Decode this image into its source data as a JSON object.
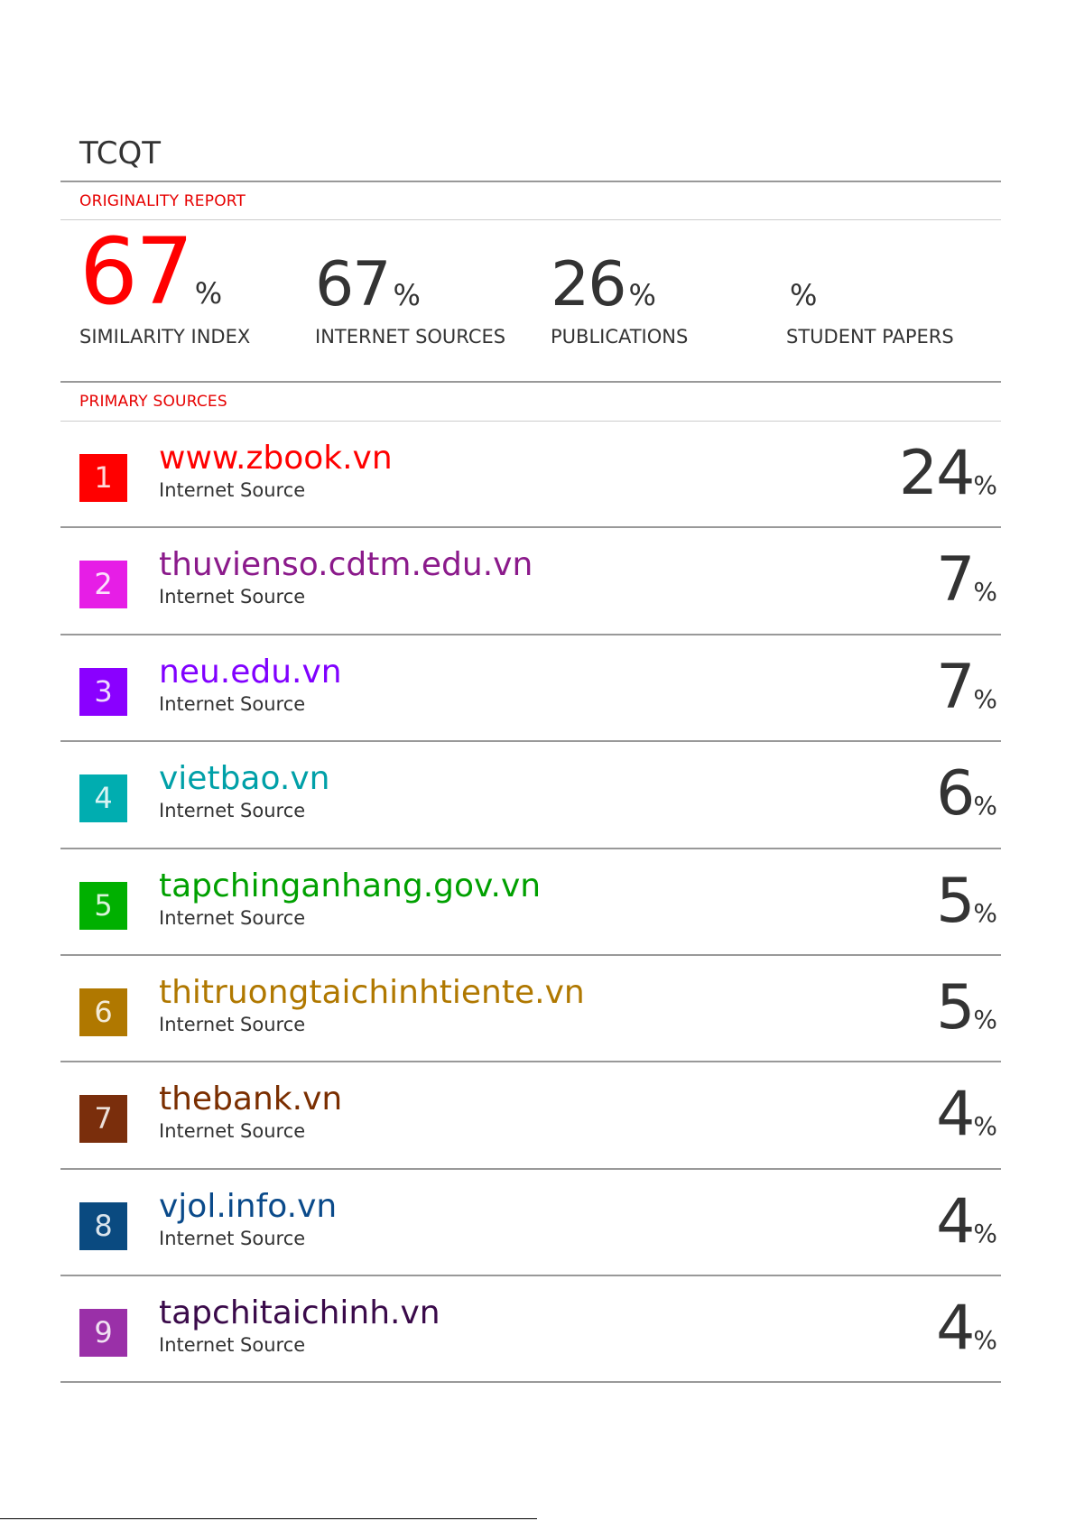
{
  "title": "TCQT",
  "originality_report_label": "ORIGINALITY REPORT",
  "primary_sources_label": "PRIMARY SOURCES",
  "stats": [
    {
      "value": "67",
      "unit": "%",
      "caption": "SIMILARITY INDEX",
      "color": "#ff0000"
    },
    {
      "value": "67",
      "unit": "%",
      "caption": "INTERNET SOURCES",
      "color": "#333333"
    },
    {
      "value": "26",
      "unit": "%",
      "caption": "PUBLICATIONS",
      "color": "#333333"
    },
    {
      "value": "",
      "unit": "%",
      "caption": "STUDENT PAPERS",
      "color": "#333333"
    }
  ],
  "sources": [
    {
      "rank": "1",
      "name": "www.zbook.vn",
      "type": "Internet Source",
      "percent": "24",
      "unit": "%",
      "color": "#ff0000",
      "badge_color": "#ff0000"
    },
    {
      "rank": "2",
      "name": "thuvienso.cdtm.edu.vn",
      "type": "Internet Source",
      "percent": "7",
      "unit": "%",
      "color": "#8b1a8b",
      "badge_color": "#e61ee6"
    },
    {
      "rank": "3",
      "name": "neu.edu.vn",
      "type": "Internet Source",
      "percent": "7",
      "unit": "%",
      "color": "#8000ff",
      "badge_color": "#8a00ff"
    },
    {
      "rank": "4",
      "name": "vietbao.vn",
      "type": "Internet Source",
      "percent": "6",
      "unit": "%",
      "color": "#00a0a8",
      "badge_color": "#00adb0"
    },
    {
      "rank": "5",
      "name": "tapchinganhang.gov.vn",
      "type": "Internet Source",
      "percent": "5",
      "unit": "%",
      "color": "#00a000",
      "badge_color": "#00b000"
    },
    {
      "rank": "6",
      "name": "thitruongtaichinhtiente.vn",
      "type": "Internet Source",
      "percent": "5",
      "unit": "%",
      "color": "#b07800",
      "badge_color": "#b07800"
    },
    {
      "rank": "7",
      "name": "thebank.vn",
      "type": "Internet Source",
      "percent": "4",
      "unit": "%",
      "color": "#7a2e00",
      "badge_color": "#7a2e0c"
    },
    {
      "rank": "8",
      "name": "vjol.info.vn",
      "type": "Internet Source",
      "percent": "4",
      "unit": "%",
      "color": "#0a4a8a",
      "badge_color": "#0a4a80"
    },
    {
      "rank": "9",
      "name": "tapchitaichinh.vn",
      "type": "Internet Source",
      "percent": "4",
      "unit": "%",
      "color": "#3a0a4a",
      "badge_color": "#9a30a8"
    }
  ]
}
